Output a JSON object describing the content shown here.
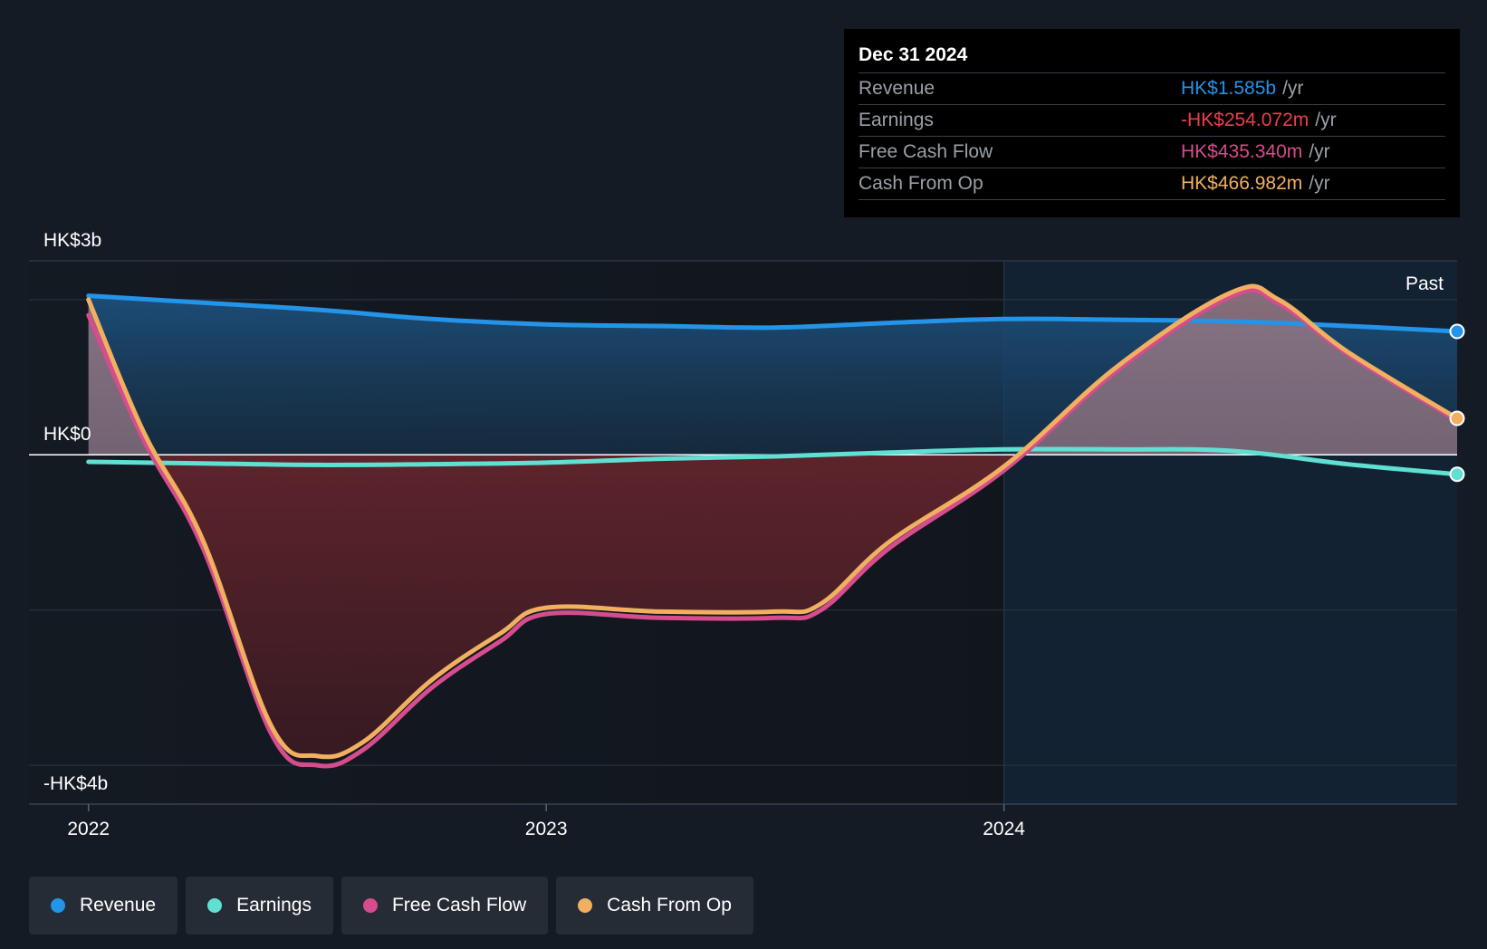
{
  "tooltip": {
    "date": "Dec 31 2024",
    "rows": [
      {
        "name": "Revenue",
        "value": "HK$1.585b",
        "unit": "/yr",
        "color": "#2394e8"
      },
      {
        "name": "Earnings",
        "value": "-HK$254.072m",
        "unit": "/yr",
        "color": "#ef3e4a"
      },
      {
        "name": "Free Cash Flow",
        "value": "HK$435.340m",
        "unit": "/yr",
        "color": "#d64c8e"
      },
      {
        "name": "Cash From Op",
        "value": "HK$466.982m",
        "unit": "/yr",
        "color": "#f0b060"
      }
    ]
  },
  "legend": [
    {
      "label": "Revenue",
      "color": "#2394e8"
    },
    {
      "label": "Earnings",
      "color": "#5fe0d2"
    },
    {
      "label": "Free Cash Flow",
      "color": "#d64c8e"
    },
    {
      "label": "Cash From Op",
      "color": "#f0b060"
    }
  ],
  "chart_data": {
    "type": "line",
    "y_top_label": "HK$3b",
    "y_zero_label": "HK$0",
    "y_bottom_label": "-HK$4b",
    "past_label": "Past",
    "ylim": [
      -4.5,
      2.5
    ],
    "xlim": [
      2021.87,
      2024.99
    ],
    "forecast_region_start": 2024.0,
    "x_ticks": [
      {
        "label": "2022",
        "value": 2022.0
      },
      {
        "label": "2023",
        "value": 2023.0
      },
      {
        "label": "2024",
        "value": 2024.0
      }
    ],
    "series": [
      {
        "name": "Revenue",
        "color": "#2394e8",
        "x": [
          2022.0,
          2022.25,
          2022.5,
          2022.75,
          2023.0,
          2023.25,
          2023.5,
          2023.75,
          2024.0,
          2024.25,
          2024.5,
          2024.75,
          2024.99
        ],
        "values": [
          2.05,
          1.96,
          1.87,
          1.75,
          1.68,
          1.66,
          1.64,
          1.7,
          1.75,
          1.74,
          1.72,
          1.66,
          1.59
        ]
      },
      {
        "name": "Earnings",
        "color": "#5fe0d2",
        "x": [
          2022.0,
          2022.25,
          2022.5,
          2022.75,
          2023.0,
          2023.25,
          2023.5,
          2023.75,
          2024.0,
          2024.25,
          2024.5,
          2024.75,
          2024.99
        ],
        "values": [
          -0.09,
          -0.11,
          -0.13,
          -0.12,
          -0.1,
          -0.05,
          -0.02,
          0.03,
          0.07,
          0.07,
          0.05,
          -0.12,
          -0.25
        ]
      },
      {
        "name": "Free Cash Flow",
        "color": "#d64c8e",
        "x": [
          2022.0,
          2022.12,
          2022.25,
          2022.4,
          2022.5,
          2022.6,
          2022.75,
          2022.9,
          2023.0,
          2023.25,
          2023.5,
          2023.6,
          2023.75,
          2024.0,
          2024.25,
          2024.5,
          2024.6,
          2024.75,
          2024.99
        ],
        "values": [
          1.8,
          0.2,
          -1.2,
          -3.6,
          -4.0,
          -3.8,
          -3.0,
          -2.4,
          -2.05,
          -2.1,
          -2.1,
          -2.0,
          -1.2,
          -0.2,
          1.1,
          2.05,
          1.95,
          1.3,
          0.44
        ]
      },
      {
        "name": "Cash From Op",
        "color": "#f0b060",
        "x": [
          2022.0,
          2022.12,
          2022.25,
          2022.4,
          2022.5,
          2022.6,
          2022.75,
          2022.9,
          2023.0,
          2023.25,
          2023.5,
          2023.6,
          2023.75,
          2024.0,
          2024.25,
          2024.5,
          2024.6,
          2024.75,
          2024.99
        ],
        "values": [
          2.0,
          0.3,
          -1.1,
          -3.5,
          -3.88,
          -3.7,
          -2.9,
          -2.3,
          -1.97,
          -2.02,
          -2.02,
          -1.92,
          -1.12,
          -0.15,
          1.15,
          2.1,
          2.0,
          1.33,
          0.47
        ]
      }
    ]
  }
}
